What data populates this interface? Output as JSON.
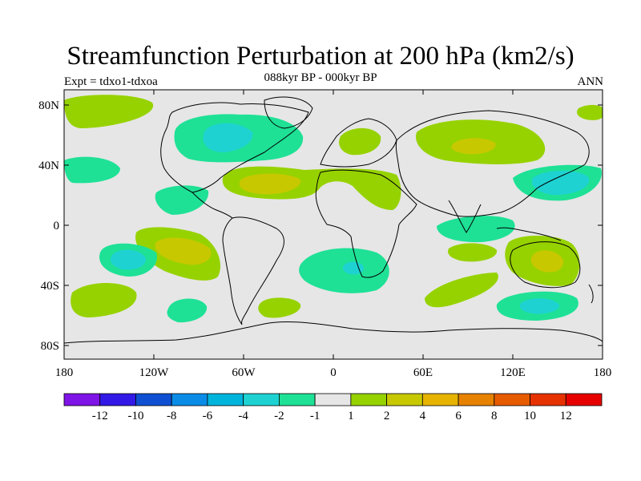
{
  "header": {
    "title": "Streamfunction Perturbation at 200 hPa (km2/s)",
    "subtitle": "088kyr BP - 000kyr BP",
    "left_label": "Expt = tdxo1-tdxoa",
    "right_label": "ANN"
  },
  "map": {
    "projection": "cylindrical-equidistant",
    "background_color": "#e6e6e6",
    "coastline_color": "#000000",
    "lat_ticks": [
      "80N",
      "40N",
      "0",
      "40S",
      "80S"
    ],
    "lon_ticks": [
      "180",
      "120W",
      "60W",
      "0",
      "60E",
      "120E",
      "180"
    ]
  },
  "colorbar": {
    "labels": [
      "-12",
      "-10",
      "-8",
      "-6",
      "-4",
      "-2",
      "-1",
      "1",
      "2",
      "4",
      "6",
      "8",
      "10",
      "12"
    ],
    "colors": [
      "#7f14e6",
      "#3219e6",
      "#0f50d2",
      "#0a8ce6",
      "#00b4dc",
      "#1ed2d2",
      "#1ee196",
      "#e6e6e6",
      "#96d200",
      "#c8c800",
      "#e6b400",
      "#e68200",
      "#e65a00",
      "#e63200",
      "#e60000"
    ]
  },
  "contours": {
    "c_neg1": "#1ee196",
    "c_neg2": "#1ed2d2",
    "c_neg3": "#00b4dc",
    "c_pos1": "#96d200",
    "c_pos2": "#c8c800"
  }
}
